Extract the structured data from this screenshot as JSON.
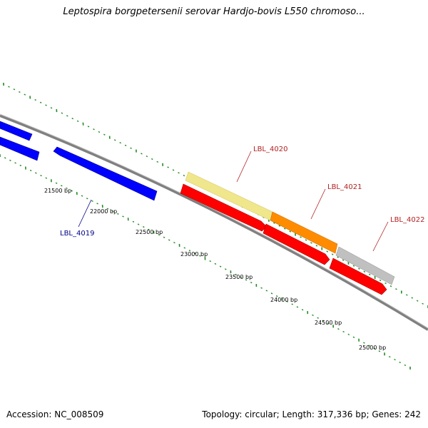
{
  "title": "Leptospira borgpetersenii serovar Hardjo-bovis L550 chromoso...",
  "footer": {
    "accession": "Accession: NC_008509",
    "summary": "Topology: circular; Length: 317,336 bp; Genes: 242"
  },
  "colors": {
    "backbone": "#808080",
    "tick": "#228b22",
    "gene_blue": "#0000ff",
    "gene_red": "#ff0000",
    "feature_pale_yellow": "#f0e68c",
    "feature_orange": "#ff8c00",
    "feature_gray": "#c0c0c0",
    "label_blue": "#00008b",
    "label_red": "#b22222"
  },
  "scale_labels": [
    "21500 bp",
    "22000 bp",
    "22500 bp",
    "23000 bp",
    "23500 bp",
    "24000 bp",
    "24500 bp",
    "25000 bp"
  ],
  "gene_labels": [
    "LBL_4019",
    "LBL_4020",
    "LBL_4021",
    "LBL_4022"
  ]
}
